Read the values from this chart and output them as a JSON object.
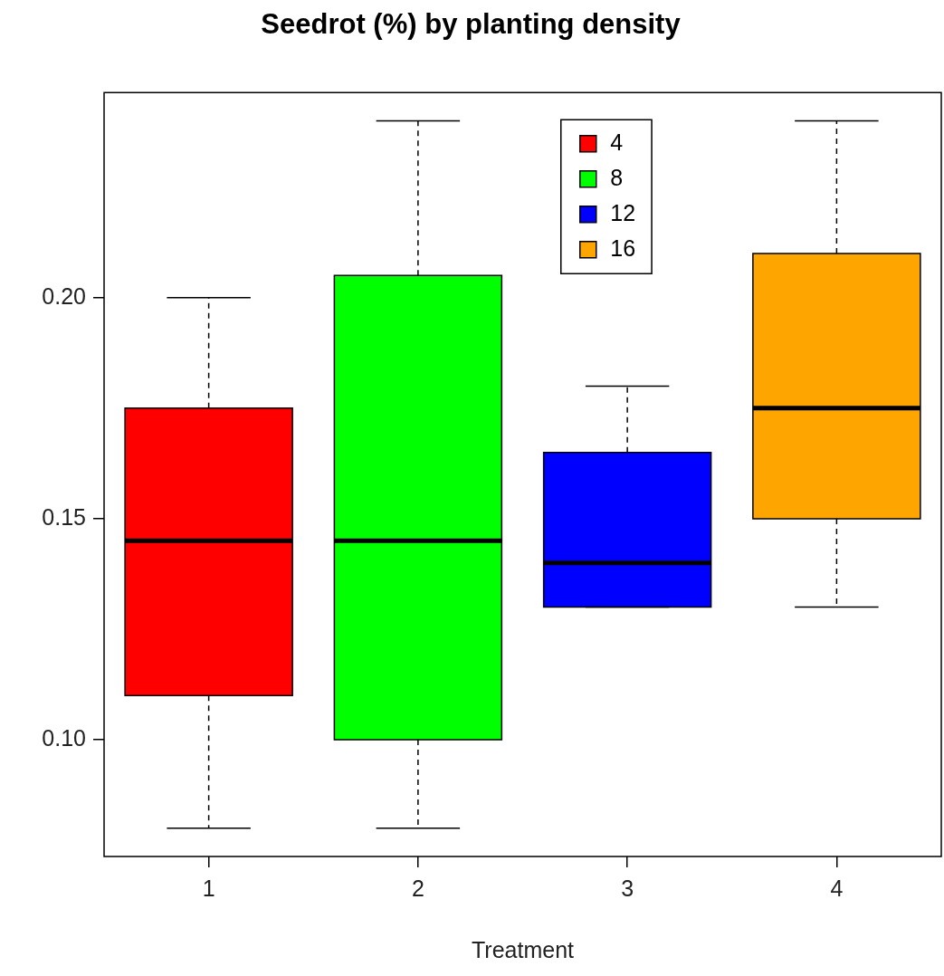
{
  "chart_data": {
    "type": "box",
    "title": "Seedrot (%) by planting density",
    "xlabel": "Treatment",
    "categories": [
      "1",
      "2",
      "3",
      "4"
    ],
    "series": [
      {
        "name": "4",
        "color": "#ff0000",
        "boxes": [
          {
            "low": 0.08,
            "q1": 0.11,
            "median": 0.145,
            "q3": 0.175,
            "high": 0.2
          },
          null,
          null,
          null
        ]
      },
      {
        "name": "8",
        "color": "#00ff00",
        "boxes": [
          null,
          {
            "low": 0.08,
            "q1": 0.1,
            "median": 0.145,
            "q3": 0.205,
            "high": 0.24
          },
          null,
          null
        ]
      },
      {
        "name": "12",
        "color": "#0000ff",
        "boxes": [
          null,
          null,
          {
            "low": 0.13,
            "q1": 0.13,
            "median": 0.14,
            "q3": 0.165,
            "high": 0.18
          },
          null
        ]
      },
      {
        "name": "16",
        "color": "#ffa500",
        "boxes": [
          null,
          null,
          null,
          {
            "low": 0.13,
            "q1": 0.15,
            "median": 0.175,
            "q3": 0.21,
            "high": 0.24
          }
        ]
      }
    ],
    "ylim": [
      0.0736,
      0.2464
    ],
    "yticks": [
      {
        "value": 0.1,
        "label": "0.10"
      },
      {
        "value": 0.15,
        "label": "0.15"
      },
      {
        "value": 0.2,
        "label": "0.20"
      }
    ],
    "grid": false,
    "legend": "top"
  }
}
